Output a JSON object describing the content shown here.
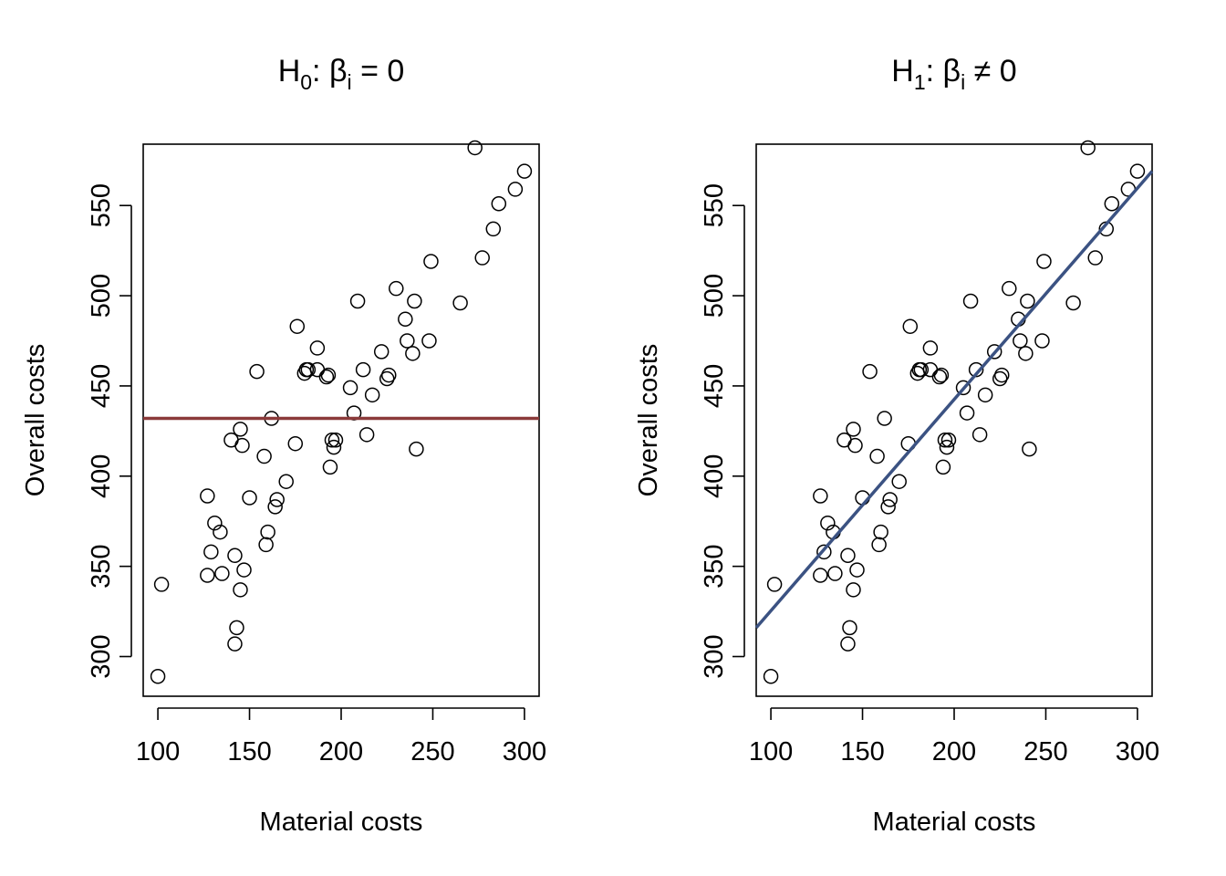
{
  "chart_data": [
    {
      "type": "scatter",
      "title": {
        "main": "H",
        "sub": "0",
        "rest": ": β",
        "sub2": "i",
        "tail": " = 0"
      },
      "xlabel": "Material costs",
      "ylabel": "Overall costs",
      "xlim": [
        92,
        308
      ],
      "ylim": [
        278,
        584
      ],
      "xticks": [
        100,
        150,
        200,
        250,
        300
      ],
      "yticks": [
        300,
        350,
        400,
        450,
        500,
        550
      ],
      "grid": false,
      "line": {
        "kind": "horizontal",
        "y": 432,
        "color": "#8B3A3A"
      }
    },
    {
      "type": "scatter",
      "title": {
        "main": "H",
        "sub": "1",
        "rest": ": β",
        "sub2": "i",
        "tail": " ≠ 0"
      },
      "xlabel": "Material costs",
      "ylabel": "Overall costs",
      "xlim": [
        92,
        308
      ],
      "ylim": [
        278,
        584
      ],
      "xticks": [
        100,
        150,
        200,
        250,
        300
      ],
      "yticks": [
        300,
        350,
        400,
        450,
        500,
        550
      ],
      "grid": false,
      "line": {
        "kind": "regression",
        "x0": 92,
        "y0": 316,
        "x1": 308,
        "y1": 569,
        "color": "#3B5282"
      }
    }
  ],
  "points": [
    [
      100,
      289
    ],
    [
      102,
      340
    ],
    [
      127,
      389
    ],
    [
      127,
      345
    ],
    [
      129,
      358
    ],
    [
      131,
      374
    ],
    [
      134,
      369
    ],
    [
      135,
      346
    ],
    [
      140,
      420
    ],
    [
      142,
      356
    ],
    [
      142,
      307
    ],
    [
      143,
      316
    ],
    [
      145,
      426
    ],
    [
      145,
      337
    ],
    [
      146,
      417
    ],
    [
      147,
      348
    ],
    [
      150,
      388
    ],
    [
      154,
      458
    ],
    [
      158,
      411
    ],
    [
      159,
      362
    ],
    [
      160,
      369
    ],
    [
      162,
      432
    ],
    [
      164,
      383
    ],
    [
      165,
      387
    ],
    [
      170,
      397
    ],
    [
      175,
      418
    ],
    [
      176,
      483
    ],
    [
      180,
      457
    ],
    [
      181,
      459
    ],
    [
      182,
      459
    ],
    [
      187,
      471
    ],
    [
      187,
      459
    ],
    [
      192,
      455
    ],
    [
      193,
      456
    ],
    [
      194,
      405
    ],
    [
      195,
      420
    ],
    [
      196,
      416
    ],
    [
      197,
      420
    ],
    [
      205,
      449
    ],
    [
      209,
      497
    ],
    [
      207,
      435
    ],
    [
      212,
      459
    ],
    [
      214,
      423
    ],
    [
      217,
      445
    ],
    [
      222,
      469
    ],
    [
      225,
      454
    ],
    [
      226,
      456
    ],
    [
      230,
      504
    ],
    [
      235,
      487
    ],
    [
      236,
      475
    ],
    [
      239,
      468
    ],
    [
      240,
      497
    ],
    [
      241,
      415
    ],
    [
      248,
      475
    ],
    [
      249,
      519
    ],
    [
      265,
      496
    ],
    [
      273,
      582
    ],
    [
      277,
      521
    ],
    [
      283,
      537
    ],
    [
      286,
      551
    ],
    [
      295,
      559
    ],
    [
      300,
      569
    ]
  ]
}
